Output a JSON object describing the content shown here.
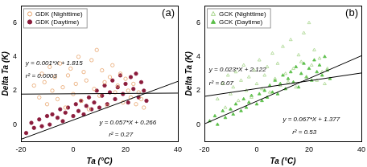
{
  "chart_data": [
    {
      "type": "scatter",
      "title": "(a)",
      "x_label": "Ta (°C)",
      "y_label": "Delta Ta (K)",
      "xlim": [
        -20,
        40
      ],
      "xticks": [
        -20,
        0,
        20,
        40
      ],
      "ylim": [
        -1,
        7
      ],
      "yticks": [
        0,
        2,
        4,
        6
      ],
      "grid": false,
      "legend": "upper left",
      "series": [
        {
          "name": "GDK (Nighttime)",
          "color": "#e8a46c",
          "marker": "open circle",
          "x": [
            -15,
            -13,
            -12,
            -11,
            -10,
            -9,
            -8,
            -7,
            -6,
            -5,
            -4,
            -3,
            -2,
            -1,
            0,
            1,
            2,
            3,
            4,
            5,
            6,
            7,
            8,
            9,
            10,
            11,
            12,
            13,
            14,
            15,
            16,
            17,
            18,
            19,
            20,
            21,
            22,
            23,
            24,
            25,
            26,
            27
          ],
          "values": [
            2.3,
            1.6,
            3.0,
            2.5,
            1.2,
            3.4,
            2.0,
            2.8,
            1.5,
            3.6,
            2.2,
            1.0,
            2.9,
            3.3,
            1.8,
            2.4,
            4.0,
            1.4,
            3.1,
            2.6,
            0.9,
            3.8,
            2.1,
            4.4,
            1.7,
            3.2,
            2.5,
            1.1,
            2.8,
            3.5,
            1.9,
            2.3,
            3.0,
            1.3,
            2.7,
            2.0,
            1.6,
            2.4,
            1.2,
            1.9,
            1.5,
            1.0
          ]
        },
        {
          "name": "GDK (Daytime)",
          "color": "#8b1c3c",
          "marker": "circle",
          "x": [
            -18,
            -16,
            -15,
            -13,
            -12,
            -10,
            -9,
            -8,
            -6,
            -5,
            -4,
            -3,
            -2,
            0,
            1,
            2,
            3,
            4,
            5,
            6,
            7,
            8,
            9,
            10,
            11,
            12,
            13,
            14,
            15,
            16,
            17,
            18,
            19,
            20,
            21,
            22,
            23,
            24,
            25,
            26,
            27,
            28
          ],
          "values": [
            -0.5,
            0.1,
            -0.2,
            0.3,
            -0.1,
            0.5,
            0.0,
            0.6,
            0.4,
            0.9,
            0.2,
            0.7,
            1.0,
            0.5,
            1.2,
            0.8,
            1.4,
            0.6,
            1.1,
            1.6,
            0.9,
            1.3,
            2.0,
            1.0,
            1.7,
            2.3,
            1.2,
            1.9,
            2.6,
            1.5,
            2.2,
            2.9,
            1.8,
            2.4,
            1.3,
            2.8,
            2.1,
            3.0,
            1.6,
            2.5,
            2.0,
            1.4
          ]
        },
        {
          "type": "line",
          "color": "#000000",
          "line_style": "solid",
          "x": [
            -20,
            40
          ],
          "values": [
            1.795,
            1.855
          ]
        },
        {
          "type": "line",
          "color": "#000000",
          "line_style": "solid",
          "x": [
            -20,
            40
          ],
          "values": [
            -0.874,
            2.546
          ]
        }
      ],
      "annotations": [
        "y = 0.001*X + 1.815",
        "r² = 0.0003",
        "y = 0.057*X + 0.266",
        "r² = 0.27"
      ]
    },
    {
      "type": "scatter",
      "title": "(b)",
      "x_label": "Ta (°C)",
      "y_label": "Delta Ta (K)",
      "xlim": [
        -20,
        40
      ],
      "xticks": [
        -20,
        0,
        20,
        40
      ],
      "ylim": [
        -1,
        7
      ],
      "yticks": [
        0,
        2,
        4,
        6
      ],
      "grid": false,
      "legend": "upper left",
      "series": [
        {
          "name": "GCK (Nighttime)",
          "color": "#a6d48a",
          "marker": "open triangle",
          "x": [
            -15,
            -13,
            -12,
            -11,
            -10,
            -9,
            -8,
            -7,
            -6,
            -5,
            -4,
            -3,
            -2,
            -1,
            0,
            1,
            2,
            3,
            4,
            5,
            6,
            7,
            8,
            9,
            10,
            11,
            12,
            13,
            14,
            15,
            16,
            17,
            18,
            19,
            20,
            21,
            22,
            23,
            24,
            25,
            26,
            27
          ],
          "values": [
            1.5,
            2.4,
            1.0,
            2.9,
            1.8,
            2.2,
            3.1,
            1.4,
            2.6,
            3.5,
            2.0,
            2.8,
            1.6,
            3.2,
            2.4,
            3.8,
            2.1,
            2.9,
            3.4,
            1.9,
            4.2,
            2.7,
            3.6,
            2.3,
            4.6,
            3.0,
            2.5,
            5.0,
            3.3,
            2.2,
            4.1,
            3.7,
            5.4,
            2.8,
            6.0,
            3.5,
            4.4,
            2.6,
            3.9,
            3.1,
            2.4,
            3.3
          ]
        },
        {
          "name": "GCK (Daytime)",
          "color": "#5cbf4a",
          "marker": "triangle",
          "x": [
            -18,
            -16,
            -15,
            -13,
            -12,
            -10,
            -9,
            -8,
            -6,
            -5,
            -4,
            -3,
            -2,
            0,
            1,
            2,
            3,
            4,
            5,
            6,
            7,
            8,
            9,
            10,
            11,
            12,
            13,
            14,
            15,
            16,
            17,
            18,
            19,
            20,
            21,
            22,
            23,
            24,
            25,
            26,
            27,
            28
          ],
          "values": [
            0.2,
            0.5,
            0.0,
            0.8,
            0.4,
            0.9,
            0.6,
            1.2,
            0.8,
            1.5,
            1.0,
            1.3,
            1.7,
            1.2,
            1.8,
            1.4,
            2.0,
            1.6,
            2.3,
            1.9,
            2.6,
            1.8,
            2.4,
            2.9,
            2.1,
            2.7,
            3.1,
            2.5,
            3.4,
            2.2,
            3.0,
            3.6,
            2.8,
            3.3,
            2.6,
            3.8,
            3.1,
            3.5,
            2.9,
            4.0,
            3.2,
            2.7
          ]
        },
        {
          "type": "line",
          "color": "#000000",
          "line_style": "solid",
          "x": [
            -20,
            40
          ],
          "values": [
            1.662,
            3.042
          ]
        },
        {
          "type": "line",
          "color": "#000000",
          "line_style": "solid",
          "x": [
            -20,
            40
          ],
          "values": [
            0.037,
            4.057
          ]
        }
      ],
      "annotations": [
        "y = 0.023*X + 2.122",
        "r² = 0.07",
        "y = 0.067*X + 1.377",
        "r² = 0.53"
      ]
    }
  ]
}
